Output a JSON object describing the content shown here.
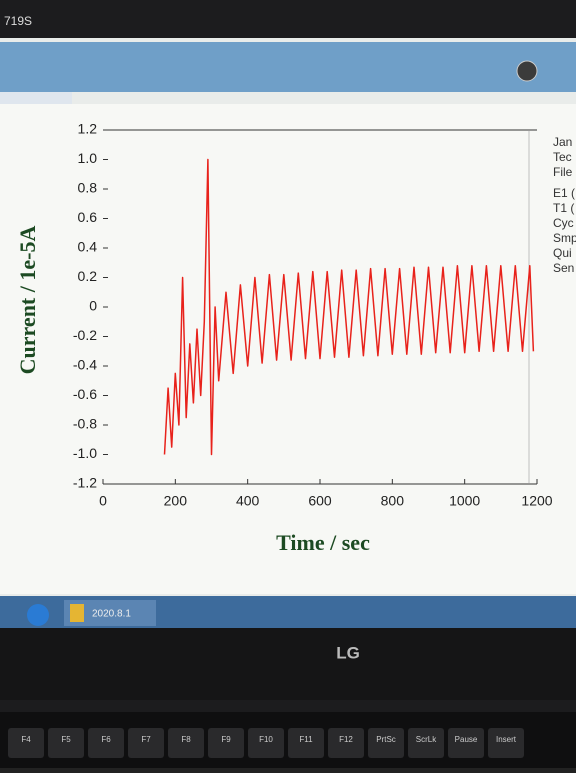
{
  "screen": {
    "window_title": "719S",
    "taskbar_item": "2020.8.1"
  },
  "monitor": {
    "brand": "LG"
  },
  "keyboard": {
    "keys": [
      "F4",
      "F5",
      "F6",
      "F7",
      "F8",
      "F9",
      "F10",
      "F11",
      "F12",
      "PrtSc",
      "ScrLk",
      "Pause",
      "Insert"
    ]
  },
  "chart_data": {
    "type": "line",
    "xlabel": "Time / sec",
    "ylabel": "Current / 1e-5A",
    "annotations": [
      "Jan",
      "Tec",
      "File",
      "E1 (",
      "T1 (",
      "Cyc",
      "Smp",
      "Qui",
      "Sen"
    ],
    "xlim": [
      0,
      1200
    ],
    "xticks": [
      0,
      200,
      400,
      600,
      800,
      1000,
      1200
    ],
    "ylim": [
      -1.2,
      1.2
    ],
    "yticks": [
      {
        "value": 1.2,
        "label": "1.2"
      },
      {
        "value": 1,
        "label": "1.0"
      },
      0.8,
      0.6,
      0.4,
      0.2,
      0,
      -0.2,
      -0.4,
      -0.6,
      -0.8,
      {
        "value": -1,
        "label": "-1.0"
      },
      -1.2
    ],
    "x": [
      170,
      180,
      190,
      200,
      210,
      220,
      230,
      240,
      250,
      260,
      270,
      280,
      290,
      300,
      310,
      320,
      340,
      360,
      380,
      400,
      420,
      440,
      460,
      480,
      500,
      520,
      540,
      560,
      580,
      600,
      620,
      640,
      660,
      680,
      700,
      720,
      740,
      760,
      780,
      800,
      820,
      840,
      860,
      880,
      900,
      920,
      940,
      960,
      980,
      1000,
      1020,
      1040,
      1060,
      1080,
      1100,
      1120,
      1140,
      1160,
      1180,
      1190
    ],
    "series": [
      {
        "color": "#e8221b",
        "values": [
          -1.0,
          -0.55,
          -0.95,
          -0.45,
          -0.8,
          0.2,
          -0.75,
          -0.25,
          -0.65,
          -0.15,
          -0.6,
          -0.1,
          1.0,
          -1.0,
          0.0,
          -0.5,
          0.1,
          -0.45,
          0.15,
          -0.4,
          0.2,
          -0.38,
          0.22,
          -0.36,
          0.22,
          -0.36,
          0.23,
          -0.35,
          0.24,
          -0.35,
          0.24,
          -0.34,
          0.25,
          -0.34,
          0.25,
          -0.33,
          0.26,
          -0.33,
          0.26,
          -0.32,
          0.26,
          -0.32,
          0.27,
          -0.32,
          0.27,
          -0.31,
          0.27,
          -0.31,
          0.28,
          -0.31,
          0.28,
          -0.3,
          0.28,
          -0.3,
          0.28,
          -0.3,
          0.28,
          -0.3,
          0.28,
          -0.3
        ]
      }
    ]
  }
}
